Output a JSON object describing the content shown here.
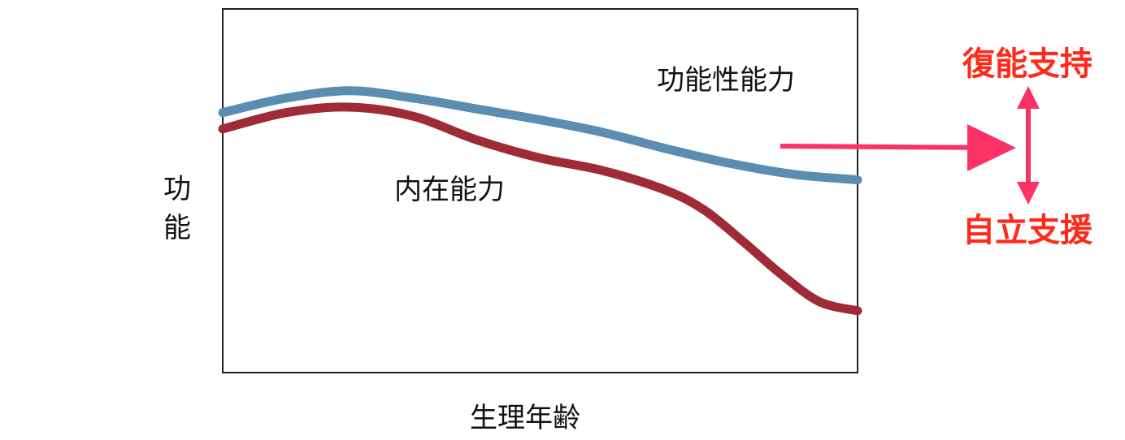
{
  "chart_data": {
    "type": "line",
    "title": "",
    "xlabel": "生理年齢",
    "ylabel": "功能",
    "grid": false,
    "xlim": [
      0,
      100
    ],
    "ylim": [
      0,
      100
    ],
    "series": [
      {
        "name": "功能性能力",
        "color": "#5b8db0",
        "x": [
          0,
          10,
          20,
          30,
          40,
          50,
          60,
          70,
          80,
          90,
          100
        ],
        "y": [
          71.5,
          75.5,
          77.5,
          75.5,
          72.5,
          69.5,
          66,
          61.5,
          57.5,
          54.5,
          53
        ]
      },
      {
        "name": "内在能力",
        "color": "#9e2b35",
        "x": [
          0,
          10,
          20,
          30,
          40,
          50,
          60,
          70,
          76,
          82,
          88,
          94,
          100
        ],
        "y": [
          67,
          71.5,
          73,
          70.5,
          64,
          59,
          55.5,
          50,
          44.5,
          36,
          27,
          19.5,
          17
        ]
      }
    ]
  },
  "annotations": {
    "functional_ability_label": "功能性能力",
    "intrinsic_capacity_label": "内在能力",
    "upper_tag": "復能支持",
    "lower_tag": "自立支援"
  },
  "colors": {
    "arrow": "#fa3266",
    "tag_text": "#ff2a1a",
    "frame": "#222222"
  }
}
